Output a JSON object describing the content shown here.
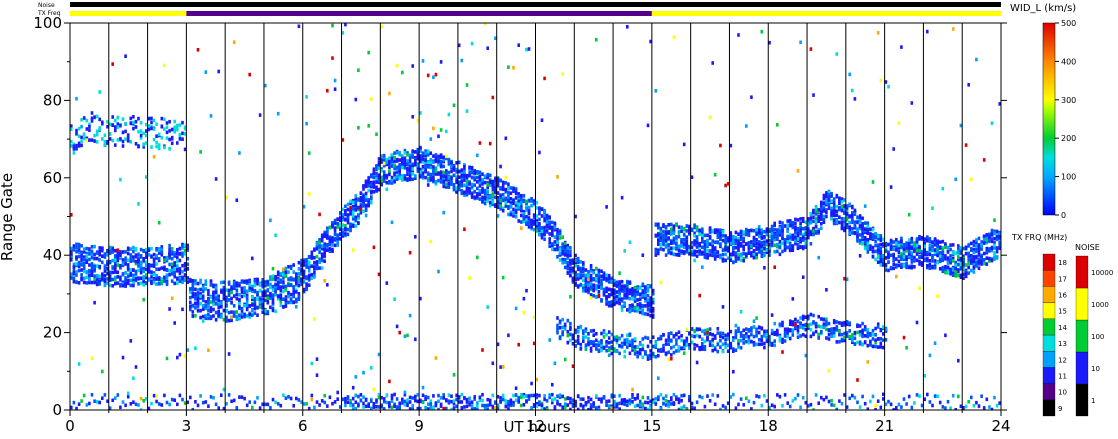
{
  "status_bars": {
    "noise_label": "Noise",
    "txfreq_label": "TX Freq",
    "noise_color": "#000000",
    "txfreq_segments": [
      {
        "from": 0,
        "to": 3,
        "color": "#ffff00"
      },
      {
        "from": 3,
        "to": 15,
        "color": "#550088"
      },
      {
        "from": 15,
        "to": 24,
        "color": "#ffff00"
      }
    ]
  },
  "chart_data": {
    "type": "heatmap",
    "title": "",
    "xlabel": "UT hours",
    "ylabel": "Range Gate",
    "xlim": [
      0,
      24
    ],
    "ylim": [
      0,
      100
    ],
    "x_ticks": [
      0,
      3,
      6,
      9,
      12,
      15,
      18,
      21,
      24
    ],
    "y_ticks": [
      0,
      20,
      40,
      60,
      80,
      100
    ],
    "scan_boundaries": [
      1,
      2,
      3,
      4,
      5,
      6,
      7,
      8,
      9,
      10,
      11,
      12,
      13,
      14,
      15,
      16,
      17,
      18,
      19,
      20,
      21,
      22,
      23,
      24
    ],
    "primary_band": [
      [
        0,
        38
      ],
      [
        1,
        37
      ],
      [
        2,
        37
      ],
      [
        3,
        38
      ],
      [
        3.05,
        29
      ],
      [
        4,
        28
      ],
      [
        5,
        29
      ],
      [
        6,
        34
      ],
      [
        6.5,
        42
      ],
      [
        7,
        48
      ],
      [
        7.4,
        52
      ],
      [
        8,
        62
      ],
      [
        9,
        64
      ],
      [
        10,
        60
      ],
      [
        11,
        56
      ],
      [
        12,
        50
      ],
      [
        12.5,
        44
      ],
      [
        13,
        36
      ],
      [
        14,
        30
      ],
      [
        15,
        28
      ],
      [
        15.05,
        44
      ],
      [
        16,
        44
      ],
      [
        17,
        42
      ],
      [
        18,
        44
      ],
      [
        19,
        46
      ],
      [
        19.5,
        53
      ],
      [
        20,
        50
      ],
      [
        20.5,
        45
      ],
      [
        21,
        40
      ],
      [
        22,
        41
      ],
      [
        23,
        38
      ],
      [
        24,
        44
      ]
    ],
    "secondary_band": [
      [
        12.5,
        22
      ],
      [
        13,
        19
      ],
      [
        14,
        17
      ],
      [
        15,
        16
      ],
      [
        16,
        18
      ],
      [
        17,
        18
      ],
      [
        18,
        19
      ],
      [
        19,
        22
      ],
      [
        20,
        20
      ],
      [
        21,
        19
      ]
    ],
    "upper_band": [
      [
        0,
        70
      ],
      [
        0.5,
        73
      ],
      [
        1,
        72
      ],
      [
        2,
        72
      ],
      [
        3,
        70
      ]
    ],
    "colorbar": {
      "title": "WID_L (km/s)",
      "min": 0,
      "max": 500,
      "ticks": [
        0,
        100,
        200,
        300,
        400,
        500
      ]
    },
    "txfrq_scale": {
      "title": "TX FRQ (MHz)",
      "levels": [
        {
          "label": "9",
          "color": "#000000"
        },
        {
          "label": "10",
          "color": "#550088"
        },
        {
          "label": "11",
          "color": "#1a1aff"
        },
        {
          "label": "12",
          "color": "#00a0ff"
        },
        {
          "label": "13",
          "color": "#00dddd"
        },
        {
          "label": "14",
          "color": "#00cc33"
        },
        {
          "label": "15",
          "color": "#ffff00"
        },
        {
          "label": "16",
          "color": "#ffaa00"
        },
        {
          "label": "17",
          "color": "#ff4400"
        },
        {
          "label": "18",
          "color": "#dd0000"
        }
      ]
    },
    "noise_scale": {
      "title": "NOISE",
      "levels": [
        {
          "label": "1",
          "color": "#000000"
        },
        {
          "label": "10",
          "color": "#1a1aff"
        },
        {
          "label": "100",
          "color": "#00cc33"
        },
        {
          "label": "1000",
          "color": "#ffff00"
        },
        {
          "label": "10000",
          "color": "#dd0000"
        }
      ]
    }
  }
}
